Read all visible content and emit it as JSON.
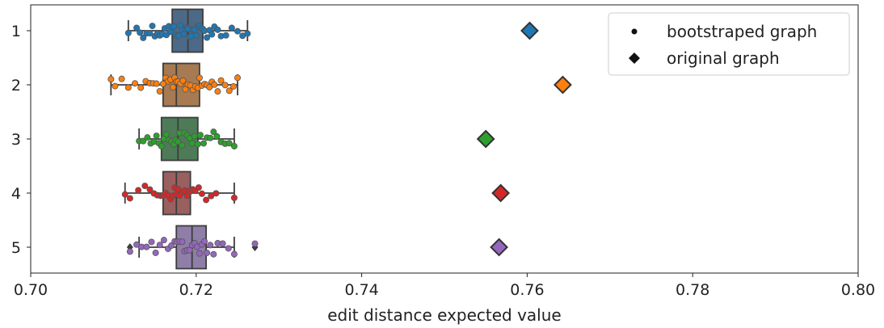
{
  "chart_data": {
    "type": "box",
    "orientation": "horizontal",
    "title": "",
    "xlabel": "edit distance expected value",
    "ylabel": "",
    "xlim": [
      0.7,
      0.8
    ],
    "x_ticks": [
      "0.70",
      "0.72",
      "0.74",
      "0.76",
      "0.78",
      "0.80"
    ],
    "x_tick_values": [
      0.7,
      0.72,
      0.74,
      0.76,
      0.78,
      0.8
    ],
    "categories": [
      "1",
      "2",
      "3",
      "4",
      "5"
    ],
    "grid": false,
    "legend": {
      "position": "top-right",
      "entries": [
        {
          "label": "bootstraped graph",
          "marker": "dot"
        },
        {
          "label": "original graph",
          "marker": "diamond"
        }
      ]
    },
    "series": [
      {
        "category": "1",
        "color": "#1f77b4",
        "box_color": "#4c6a88",
        "box": {
          "whisker_low": 0.7118,
          "q1": 0.7171,
          "median": 0.719,
          "q3": 0.7208,
          "whisker_high": 0.7262
        },
        "outliers": [],
        "bootstrap_points": [
          0.7118,
          0.7128,
          0.7132,
          0.7136,
          0.714,
          0.7144,
          0.7147,
          0.715,
          0.7153,
          0.7156,
          0.7159,
          0.7162,
          0.7164,
          0.7167,
          0.7169,
          0.7171,
          0.7173,
          0.7175,
          0.7177,
          0.7179,
          0.7181,
          0.7183,
          0.7185,
          0.7187,
          0.7189,
          0.719,
          0.7192,
          0.7194,
          0.7196,
          0.7198,
          0.72,
          0.7202,
          0.7204,
          0.7206,
          0.7208,
          0.721,
          0.7213,
          0.7216,
          0.7219,
          0.7222,
          0.7226,
          0.723,
          0.7236,
          0.7243,
          0.725,
          0.7256,
          0.7262
        ],
        "original": 0.7603
      },
      {
        "category": "2",
        "color": "#ff7f0e",
        "box_color": "#a67a52",
        "box": {
          "whisker_low": 0.7097,
          "q1": 0.716,
          "median": 0.7176,
          "q3": 0.7204,
          "whisker_high": 0.725
        },
        "outliers": [],
        "bootstrap_points": [
          0.7097,
          0.7102,
          0.711,
          0.7118,
          0.7126,
          0.7133,
          0.7139,
          0.7144,
          0.7148,
          0.7152,
          0.7156,
          0.716,
          0.7163,
          0.7166,
          0.7169,
          0.7172,
          0.7174,
          0.7176,
          0.7178,
          0.7181,
          0.7184,
          0.7187,
          0.719,
          0.7193,
          0.7196,
          0.7199,
          0.7202,
          0.7204,
          0.7207,
          0.721,
          0.7213,
          0.7216,
          0.7219,
          0.7222,
          0.7226,
          0.723,
          0.7235,
          0.724,
          0.7245,
          0.725
        ],
        "original": 0.7643
      },
      {
        "category": "3",
        "color": "#2ca02c",
        "box_color": "#4e7a58",
        "box": {
          "whisker_low": 0.7131,
          "q1": 0.7158,
          "median": 0.7178,
          "q3": 0.7202,
          "whisker_high": 0.7246
        },
        "outliers": [],
        "bootstrap_points": [
          0.7131,
          0.7136,
          0.7141,
          0.7145,
          0.7149,
          0.7152,
          0.7155,
          0.7158,
          0.7161,
          0.7164,
          0.7167,
          0.717,
          0.7173,
          0.7175,
          0.7178,
          0.718,
          0.7183,
          0.7186,
          0.7189,
          0.7192,
          0.7195,
          0.7198,
          0.7202,
          0.7205,
          0.7209,
          0.7213,
          0.7217,
          0.7221,
          0.7225,
          0.723,
          0.7235,
          0.724,
          0.7246
        ],
        "original": 0.755
      },
      {
        "category": "4",
        "color": "#d62728",
        "box_color": "#9a6060",
        "box": {
          "whisker_low": 0.7114,
          "q1": 0.716,
          "median": 0.7176,
          "q3": 0.7193,
          "whisker_high": 0.7246
        },
        "outliers": [],
        "bootstrap_points": [
          0.7114,
          0.712,
          0.713,
          0.7138,
          0.7144,
          0.7149,
          0.7153,
          0.7157,
          0.716,
          0.7163,
          0.7166,
          0.7169,
          0.7172,
          0.7174,
          0.7176,
          0.7178,
          0.718,
          0.7183,
          0.7186,
          0.7189,
          0.7191,
          0.7193,
          0.7196,
          0.7199,
          0.7203,
          0.7207,
          0.7212,
          0.7218,
          0.7224,
          0.7246
        ],
        "original": 0.7568
      },
      {
        "category": "5",
        "color": "#9467bd",
        "box_color": "#8f7ea8",
        "box": {
          "whisker_low": 0.7131,
          "q1": 0.7176,
          "median": 0.7195,
          "q3": 0.7212,
          "whisker_high": 0.7246
        },
        "outliers": [
          0.712,
          0.7271
        ],
        "bootstrap_points": [
          0.712,
          0.7128,
          0.7134,
          0.714,
          0.7146,
          0.7151,
          0.7156,
          0.7161,
          0.7166,
          0.717,
          0.7174,
          0.7177,
          0.718,
          0.7183,
          0.7186,
          0.7189,
          0.7192,
          0.7195,
          0.7198,
          0.7201,
          0.7204,
          0.7207,
          0.721,
          0.7213,
          0.7217,
          0.7221,
          0.7226,
          0.7232,
          0.7239,
          0.7246,
          0.7271
        ],
        "original": 0.7566
      }
    ]
  }
}
